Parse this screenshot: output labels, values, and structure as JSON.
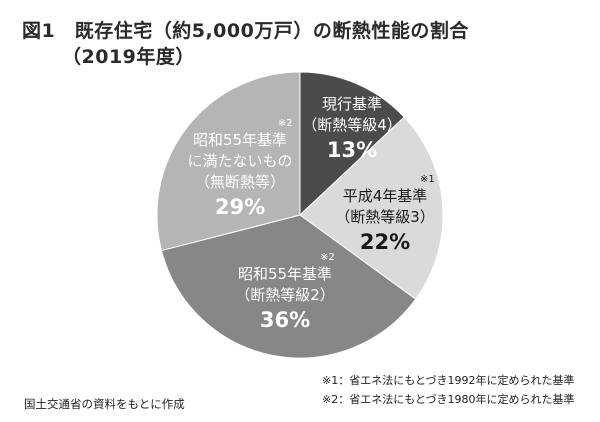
{
  "title": {
    "line1": "図1　既存住宅（約5,000万戸）の断熱性能の割合",
    "line2": "（2019年度）"
  },
  "chart_data": {
    "type": "pie",
    "title": "図1　既存住宅（約5,000万戸）の断熱性能の割合（2019年度）",
    "slices": [
      {
        "name": "現行基準",
        "sub": "（断熱等級4）",
        "value": 13,
        "label": "13%",
        "note": "",
        "color": "#4b4b4b",
        "text_color": "#ffffff"
      },
      {
        "name": "平成4年基準",
        "sub": "（断熱等級3）",
        "value": 22,
        "label": "22%",
        "note": "※1",
        "color": "#dadada",
        "text_color": "#1a1a1a"
      },
      {
        "name": "昭和55年基準",
        "sub": "（断熱等級2）",
        "value": 36,
        "label": "36%",
        "note": "※2",
        "color": "#878787",
        "text_color": "#ffffff"
      },
      {
        "name": "昭和55年基準に満たないもの",
        "sub": "（無断熱等）",
        "value": 29,
        "label": "29%",
        "note": "※2",
        "color": "#b5b5b5",
        "text_color": "#ffffff"
      }
    ],
    "start": "top",
    "direction": "clockwise"
  },
  "slice_text": {
    "s0": {
      "l1": "現行基準",
      "l2": "（断熱等級4）"
    },
    "s1": {
      "l1": "平成4年基準",
      "l2": "（断熱等級3）"
    },
    "s2": {
      "l1": "昭和55年基準",
      "l2": "（断熱等級2）"
    },
    "s3": {
      "l1": "昭和55年基準",
      "l1b": "に満たないもの",
      "l2": "（無断熱等）"
    }
  },
  "source": "国土交通省の資料をもとに作成",
  "footnotes": [
    "※1：省エネ法にもとづき1992年に定められた基準",
    "※2：省エネ法にもとづき1980年に定められた基準"
  ]
}
